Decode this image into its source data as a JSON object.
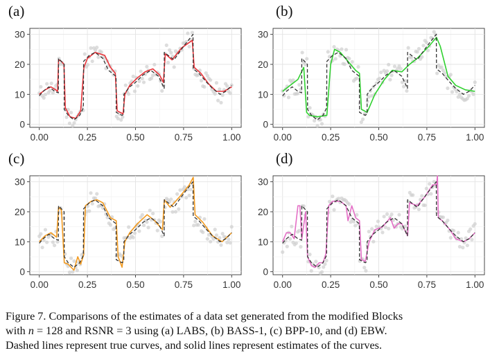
{
  "panels_colors": {
    "a": "#e8343a",
    "b": "#2fd12f",
    "c": "#f29a1f",
    "d": "#e46fc6"
  },
  "chart_data": [
    {
      "type": "line",
      "label": "(a)",
      "x_ticks": [
        "0.00",
        "0.25",
        "0.50",
        "0.75",
        "1.00"
      ],
      "y_ticks": [
        "0",
        "10",
        "20",
        "30"
      ],
      "xlim": [
        0,
        1
      ],
      "ylim": [
        -1,
        32
      ],
      "grid": true,
      "series": [
        {
          "style": "dashed",
          "color": "#333333",
          "x": [
            0,
            0.02,
            0.05,
            0.08,
            0.099,
            0.1,
            0.129,
            0.13,
            0.15,
            0.18,
            0.21,
            0.229,
            0.23,
            0.26,
            0.29,
            0.33,
            0.36,
            0.399,
            0.4,
            0.43,
            0.439,
            0.44,
            0.47,
            0.5,
            0.54,
            0.58,
            0.62,
            0.649,
            0.65,
            0.7,
            0.75,
            0.799,
            0.8,
            0.83,
            0.87,
            0.9,
            0.94,
            0.97,
            1.0
          ],
          "y": [
            9.5,
            11,
            12.5,
            11,
            10.5,
            22,
            20,
            5,
            3,
            1.5,
            3,
            5.5,
            21,
            23,
            24,
            22,
            18,
            16,
            4,
            3,
            3.5,
            10,
            12.5,
            14,
            16.5,
            18,
            16,
            12,
            24,
            21.5,
            26,
            30,
            18.5,
            17,
            14,
            12,
            10,
            11,
            13
          ]
        },
        {
          "style": "solid",
          "color": "#e8343a",
          "x": [
            0,
            0.03,
            0.06,
            0.085,
            0.095,
            0.1,
            0.115,
            0.128,
            0.135,
            0.16,
            0.19,
            0.215,
            0.232,
            0.25,
            0.29,
            0.34,
            0.37,
            0.395,
            0.405,
            0.435,
            0.445,
            0.47,
            0.51,
            0.55,
            0.59,
            0.625,
            0.645,
            0.655,
            0.69,
            0.74,
            0.795,
            0.805,
            0.84,
            0.88,
            0.92,
            0.96,
            1.0
          ],
          "y": [
            10,
            11.5,
            12.5,
            11.5,
            11,
            21.5,
            21,
            20,
            5.5,
            2.5,
            2,
            4.5,
            19,
            22,
            24,
            23,
            19,
            17,
            4.5,
            3.5,
            10,
            13,
            15.5,
            17.5,
            18.5,
            16.5,
            14,
            23.5,
            21.5,
            25.5,
            28,
            19,
            17,
            13.5,
            11,
            11,
            12.5
          ]
        }
      ]
    },
    {
      "type": "line",
      "label": "(b)",
      "x_ticks": [
        "0.00",
        "0.25",
        "0.50",
        "0.75",
        "1.00"
      ],
      "y_ticks": [
        "0",
        "10",
        "20",
        "30"
      ],
      "xlim": [
        0,
        1
      ],
      "ylim": [
        -1,
        32
      ],
      "grid": true,
      "series": [
        {
          "style": "dashed",
          "color": "#333333",
          "x": [
            0,
            0.02,
            0.05,
            0.08,
            0.099,
            0.1,
            0.129,
            0.13,
            0.15,
            0.18,
            0.21,
            0.229,
            0.23,
            0.26,
            0.29,
            0.33,
            0.36,
            0.399,
            0.4,
            0.43,
            0.439,
            0.44,
            0.47,
            0.5,
            0.54,
            0.58,
            0.62,
            0.649,
            0.65,
            0.7,
            0.75,
            0.799,
            0.8,
            0.83,
            0.87,
            0.9,
            0.94,
            0.97,
            1.0
          ],
          "y": [
            9.5,
            11,
            12.5,
            11,
            10.5,
            22,
            20,
            5,
            3,
            1.5,
            3,
            5.5,
            21,
            23,
            24,
            22,
            18,
            16,
            4,
            3,
            3.5,
            10,
            12.5,
            14,
            16.5,
            18,
            16,
            12,
            24,
            21.5,
            26,
            30,
            18.5,
            17,
            14,
            12,
            10,
            11,
            13
          ]
        },
        {
          "style": "solid",
          "color": "#2fd12f",
          "x": [
            0,
            0.04,
            0.08,
            0.11,
            0.125,
            0.14,
            0.18,
            0.23,
            0.25,
            0.27,
            0.3,
            0.34,
            0.38,
            0.4,
            0.41,
            0.44,
            0.48,
            0.53,
            0.57,
            0.62,
            0.66,
            0.7,
            0.76,
            0.8,
            0.82,
            0.86,
            0.9,
            0.95,
            1.0
          ],
          "y": [
            11,
            13,
            15,
            19,
            4,
            3,
            2.5,
            3,
            20,
            25,
            24,
            21,
            18,
            17,
            5,
            4,
            10,
            15,
            18,
            17.5,
            20,
            22,
            26,
            29,
            26,
            16,
            13,
            11.5,
            11
          ]
        }
      ]
    },
    {
      "type": "line",
      "label": "(c)",
      "x_ticks": [
        "0.00",
        "0.25",
        "0.50",
        "0.75",
        "1.00"
      ],
      "y_ticks": [
        "0",
        "10",
        "20",
        "30"
      ],
      "xlim": [
        0,
        1
      ],
      "ylim": [
        -1,
        32
      ],
      "grid": true,
      "series": [
        {
          "style": "dashed",
          "color": "#333333",
          "x": [
            0,
            0.02,
            0.05,
            0.08,
            0.099,
            0.1,
            0.129,
            0.13,
            0.15,
            0.18,
            0.21,
            0.229,
            0.23,
            0.26,
            0.29,
            0.33,
            0.36,
            0.399,
            0.4,
            0.43,
            0.439,
            0.44,
            0.47,
            0.5,
            0.54,
            0.58,
            0.62,
            0.649,
            0.65,
            0.7,
            0.75,
            0.799,
            0.8,
            0.83,
            0.87,
            0.9,
            0.94,
            0.97,
            1.0
          ],
          "y": [
            9.5,
            11,
            12.5,
            11,
            10.5,
            22,
            20,
            5,
            3,
            1.5,
            3,
            5.5,
            21,
            23,
            24,
            22,
            18,
            16,
            4,
            3,
            3.5,
            10,
            12.5,
            14,
            16.5,
            18,
            16,
            12,
            24,
            21.5,
            26,
            30,
            18.5,
            17,
            14,
            12,
            10,
            11,
            13
          ]
        },
        {
          "style": "solid",
          "color": "#f29a1f",
          "x": [
            0,
            0.03,
            0.06,
            0.09,
            0.1,
            0.115,
            0.13,
            0.15,
            0.18,
            0.2,
            0.215,
            0.23,
            0.24,
            0.27,
            0.3,
            0.33,
            0.37,
            0.4,
            0.41,
            0.43,
            0.445,
            0.47,
            0.51,
            0.56,
            0.6,
            0.64,
            0.65,
            0.68,
            0.73,
            0.78,
            0.8,
            0.81,
            0.85,
            0.9,
            0.95,
            1.0
          ],
          "y": [
            10,
            12,
            13,
            11.5,
            21.5,
            20.5,
            3,
            2.5,
            0.5,
            5,
            2.5,
            5.5,
            22,
            23.5,
            24,
            23,
            18,
            17,
            5,
            1.5,
            10,
            13,
            16,
            19,
            17,
            14,
            24,
            21.5,
            25,
            29,
            31.5,
            19,
            16.5,
            12,
            10,
            13
          ]
        }
      ]
    },
    {
      "type": "line",
      "label": "(d)",
      "x_ticks": [
        "0.00",
        "0.25",
        "0.50",
        "0.75",
        "1.00"
      ],
      "y_ticks": [
        "0",
        "10",
        "20",
        "30"
      ],
      "xlim": [
        0,
        1
      ],
      "ylim": [
        -1,
        32
      ],
      "grid": true,
      "series": [
        {
          "style": "dashed",
          "color": "#333333",
          "x": [
            0,
            0.02,
            0.05,
            0.08,
            0.099,
            0.1,
            0.129,
            0.13,
            0.15,
            0.18,
            0.21,
            0.229,
            0.23,
            0.26,
            0.29,
            0.33,
            0.36,
            0.399,
            0.4,
            0.43,
            0.439,
            0.44,
            0.47,
            0.5,
            0.54,
            0.58,
            0.62,
            0.649,
            0.65,
            0.7,
            0.75,
            0.799,
            0.8,
            0.83,
            0.87,
            0.9,
            0.94,
            0.97,
            1.0
          ],
          "y": [
            9.5,
            11,
            12.5,
            11,
            10.5,
            22,
            20,
            5,
            3,
            1.5,
            3,
            5.5,
            21,
            23,
            24,
            22,
            18,
            16,
            4,
            3,
            3.5,
            10,
            12.5,
            14,
            16.5,
            18,
            16,
            12,
            24,
            21.5,
            26,
            30,
            18.5,
            17,
            14,
            12,
            10,
            11,
            13
          ]
        },
        {
          "style": "solid",
          "color": "#e46fc6",
          "x": [
            0,
            0.02,
            0.04,
            0.06,
            0.08,
            0.09,
            0.1,
            0.12,
            0.13,
            0.15,
            0.17,
            0.19,
            0.21,
            0.225,
            0.24,
            0.26,
            0.3,
            0.33,
            0.34,
            0.36,
            0.38,
            0.4,
            0.41,
            0.43,
            0.45,
            0.48,
            0.52,
            0.56,
            0.58,
            0.6,
            0.62,
            0.65,
            0.66,
            0.7,
            0.74,
            0.78,
            0.8,
            0.805,
            0.81,
            0.83,
            0.87,
            0.9,
            0.94,
            0.97,
            1.0
          ],
          "y": [
            10,
            13,
            13,
            11,
            22,
            22,
            11,
            20,
            5,
            2,
            1.5,
            3,
            3,
            6,
            22,
            23.5,
            23.5,
            22,
            17,
            22,
            18,
            17,
            4,
            3.5,
            10,
            14,
            15,
            18,
            14.5,
            16,
            16,
            12,
            23,
            22,
            25,
            29,
            29,
            32,
            18,
            17,
            14,
            11,
            10,
            11,
            13
          ]
        }
      ]
    }
  ],
  "caption": {
    "line1": "Figure 7. Comparisons of the estimates of a data set generated from the modified Blocks",
    "line2_pre": "with ",
    "line2_math": "n",
    "line2_post": " = 128 and RSNR = 3 using (a) LABS, (b) BASS-1, (c) BPP-10, and (d) EBW.",
    "line3": "Dashed lines represent true curves, and solid lines represent estimates of the curves."
  }
}
